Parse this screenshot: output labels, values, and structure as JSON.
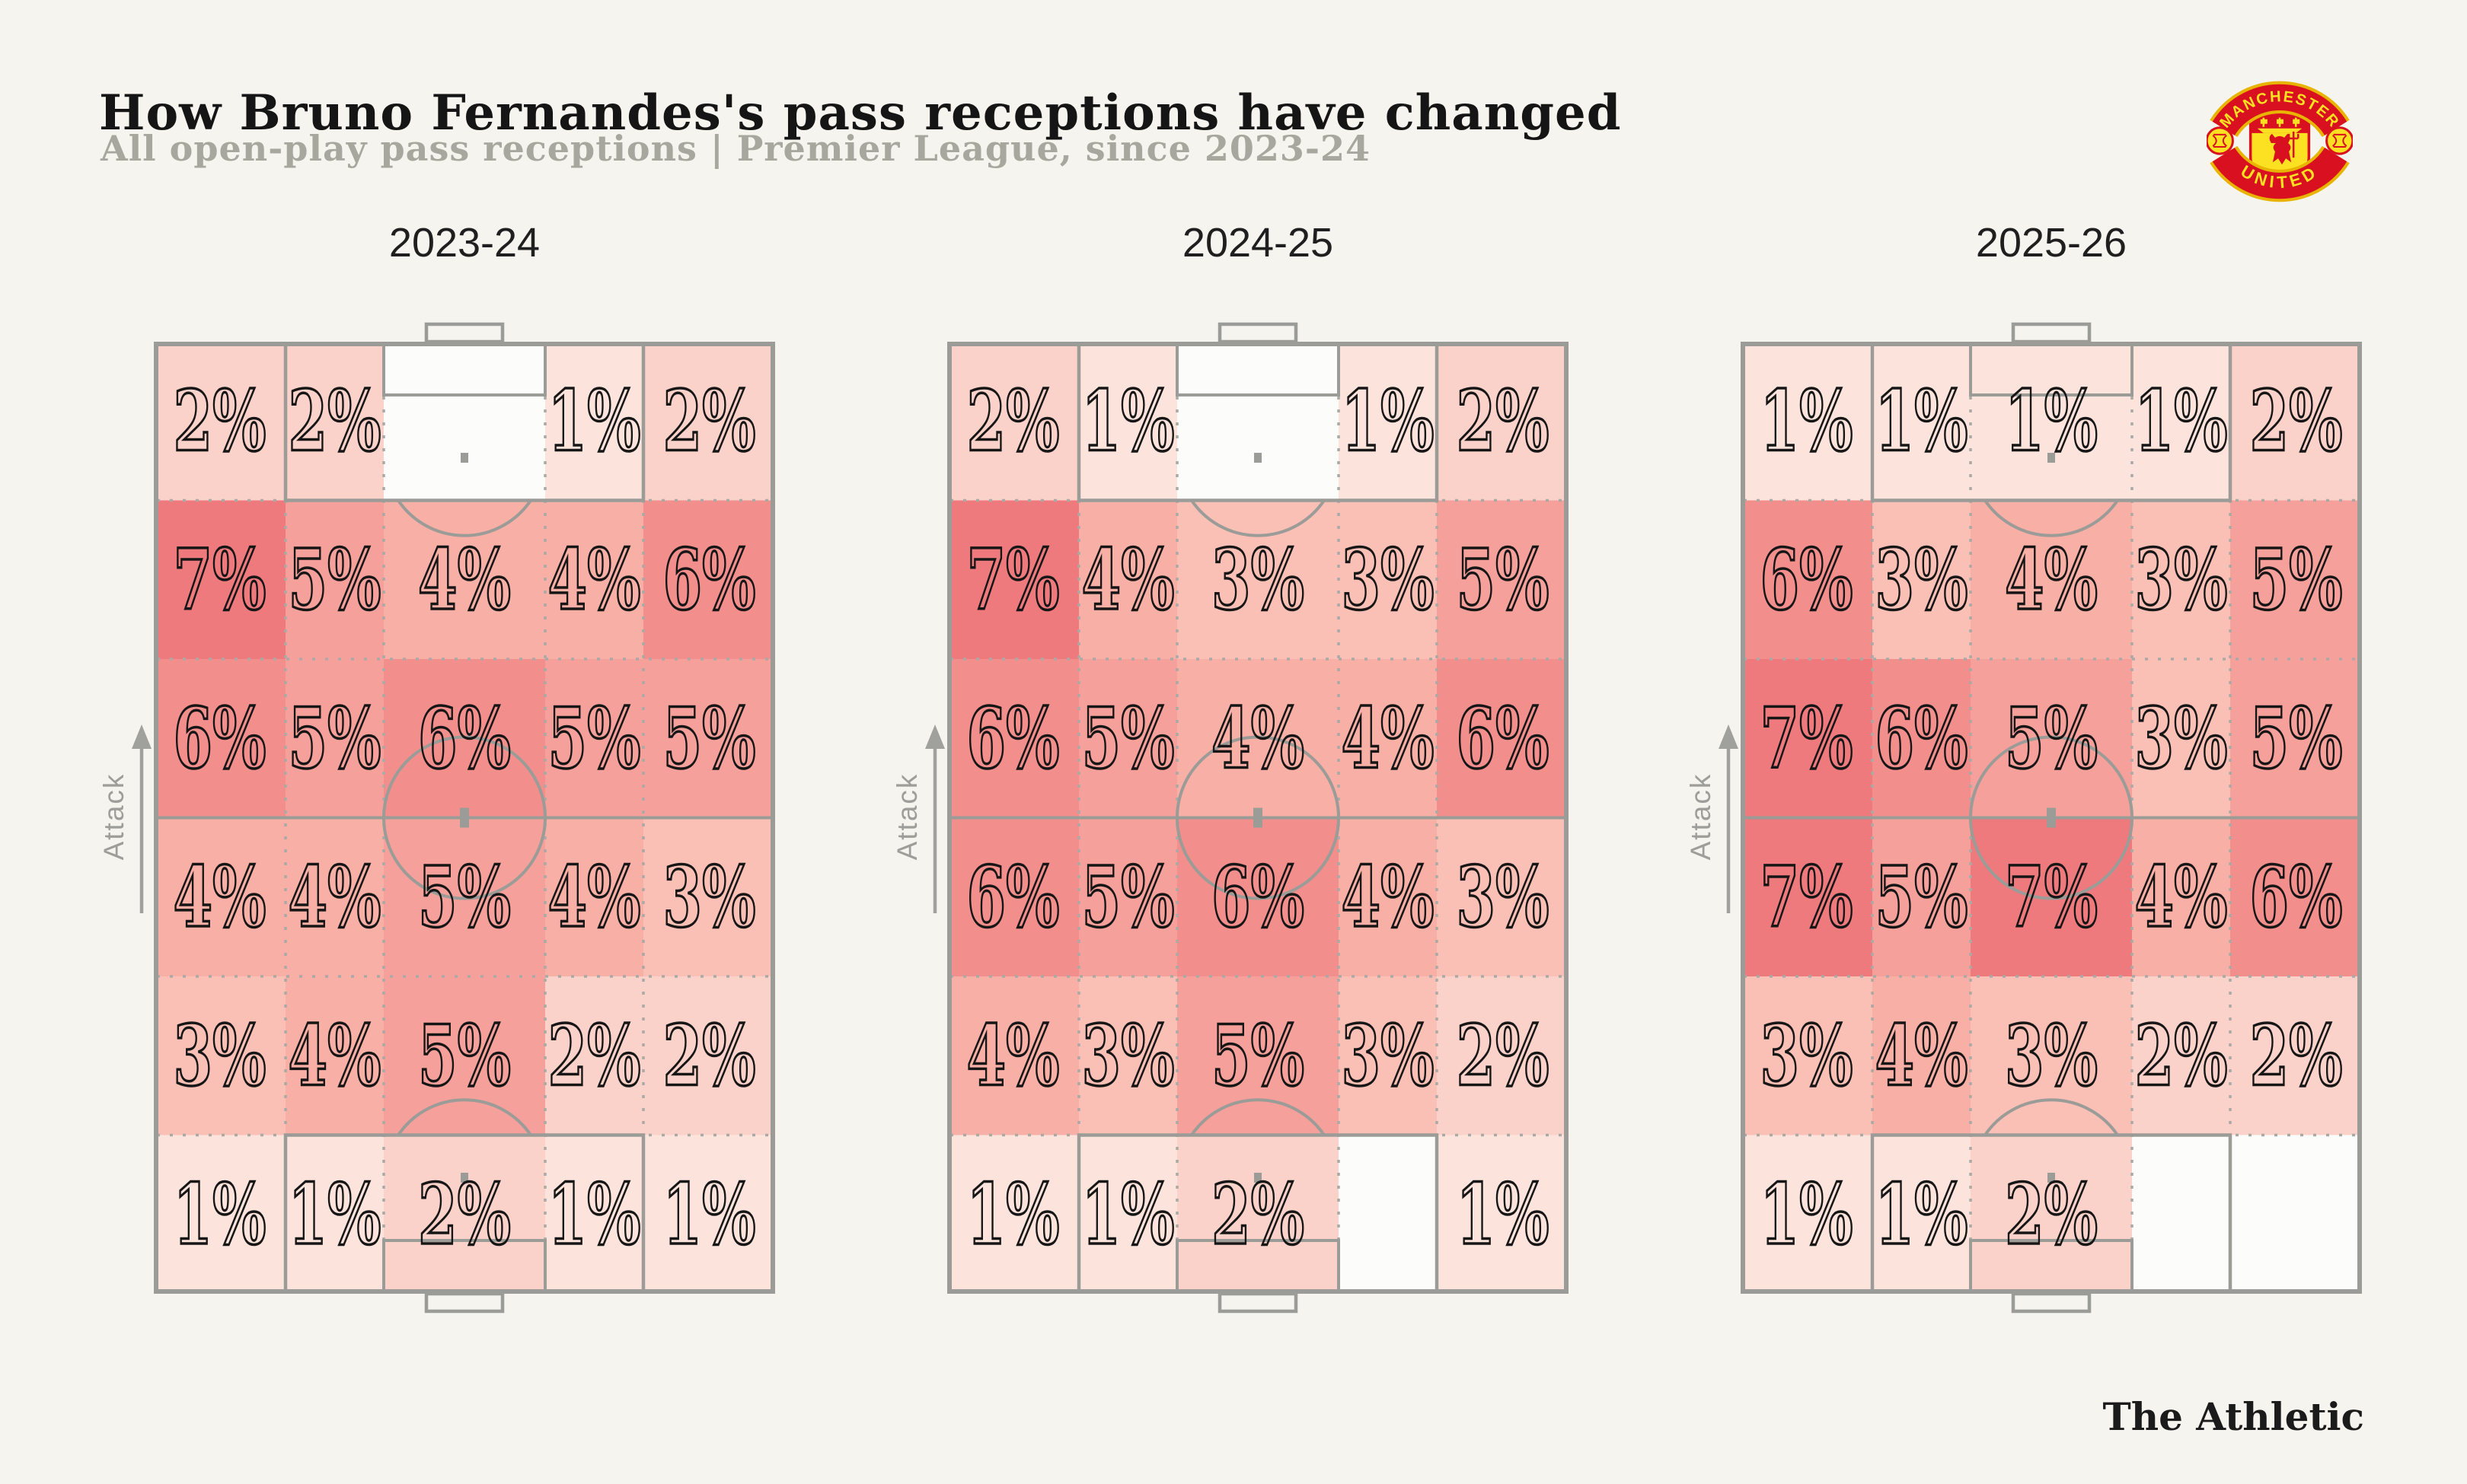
{
  "header": {
    "title": "How Bruno Fernandes's pass receptions have changed",
    "subtitle": "All open-play pass receptions | Premier League, since 2023-24"
  },
  "badge": {
    "club": "Manchester United",
    "banner_top": "MANCHESTER",
    "banner_bottom": "UNITED",
    "red": "#d8101f",
    "yellow": "#fbe122",
    "gold_trim": "#e9b400"
  },
  "footer": {
    "brand": "The Athletic"
  },
  "chart_data": {
    "type": "heatmap",
    "subtype": "football-pitch-zone-grid",
    "title": "How Bruno Fernandes's pass receptions have changed",
    "subtitle": "All open-play pass receptions | Premier League, since 2023-24",
    "unit": "%",
    "attack_label": "Attack",
    "grid_shape": {
      "rows": 6,
      "cols": 5
    },
    "column_fractions": [
      0.212,
      0.158,
      0.26,
      0.158,
      0.212
    ],
    "orientation": "attack-up",
    "color_scale": {
      "blank": "#fcfcfa",
      "1": "#fce4dc",
      "2": "#fbd2c9",
      "3": "#fac0b6",
      "4": "#f8afa5",
      "5": "#f5a09a",
      "6": "#f28e8c",
      "7": "#ee7a7e"
    },
    "seasons": [
      {
        "label": "2023-24",
        "grid": [
          [
            2,
            2,
            null,
            1,
            2
          ],
          [
            7,
            5,
            4,
            4,
            6
          ],
          [
            6,
            5,
            6,
            5,
            5
          ],
          [
            4,
            4,
            5,
            4,
            3
          ],
          [
            3,
            4,
            5,
            2,
            2
          ],
          [
            1,
            1,
            2,
            1,
            1
          ]
        ]
      },
      {
        "label": "2024-25",
        "grid": [
          [
            2,
            1,
            null,
            1,
            2
          ],
          [
            7,
            4,
            3,
            3,
            5
          ],
          [
            6,
            5,
            4,
            4,
            6
          ],
          [
            6,
            5,
            6,
            4,
            3
          ],
          [
            4,
            3,
            5,
            3,
            2
          ],
          [
            1,
            1,
            2,
            null,
            1
          ]
        ]
      },
      {
        "label": "2025-26",
        "grid": [
          [
            1,
            1,
            1,
            1,
            2
          ],
          [
            6,
            3,
            4,
            3,
            5
          ],
          [
            7,
            6,
            5,
            3,
            5
          ],
          [
            7,
            5,
            7,
            4,
            6
          ],
          [
            3,
            4,
            3,
            2,
            2
          ],
          [
            1,
            1,
            2,
            null,
            null
          ]
        ]
      }
    ]
  }
}
